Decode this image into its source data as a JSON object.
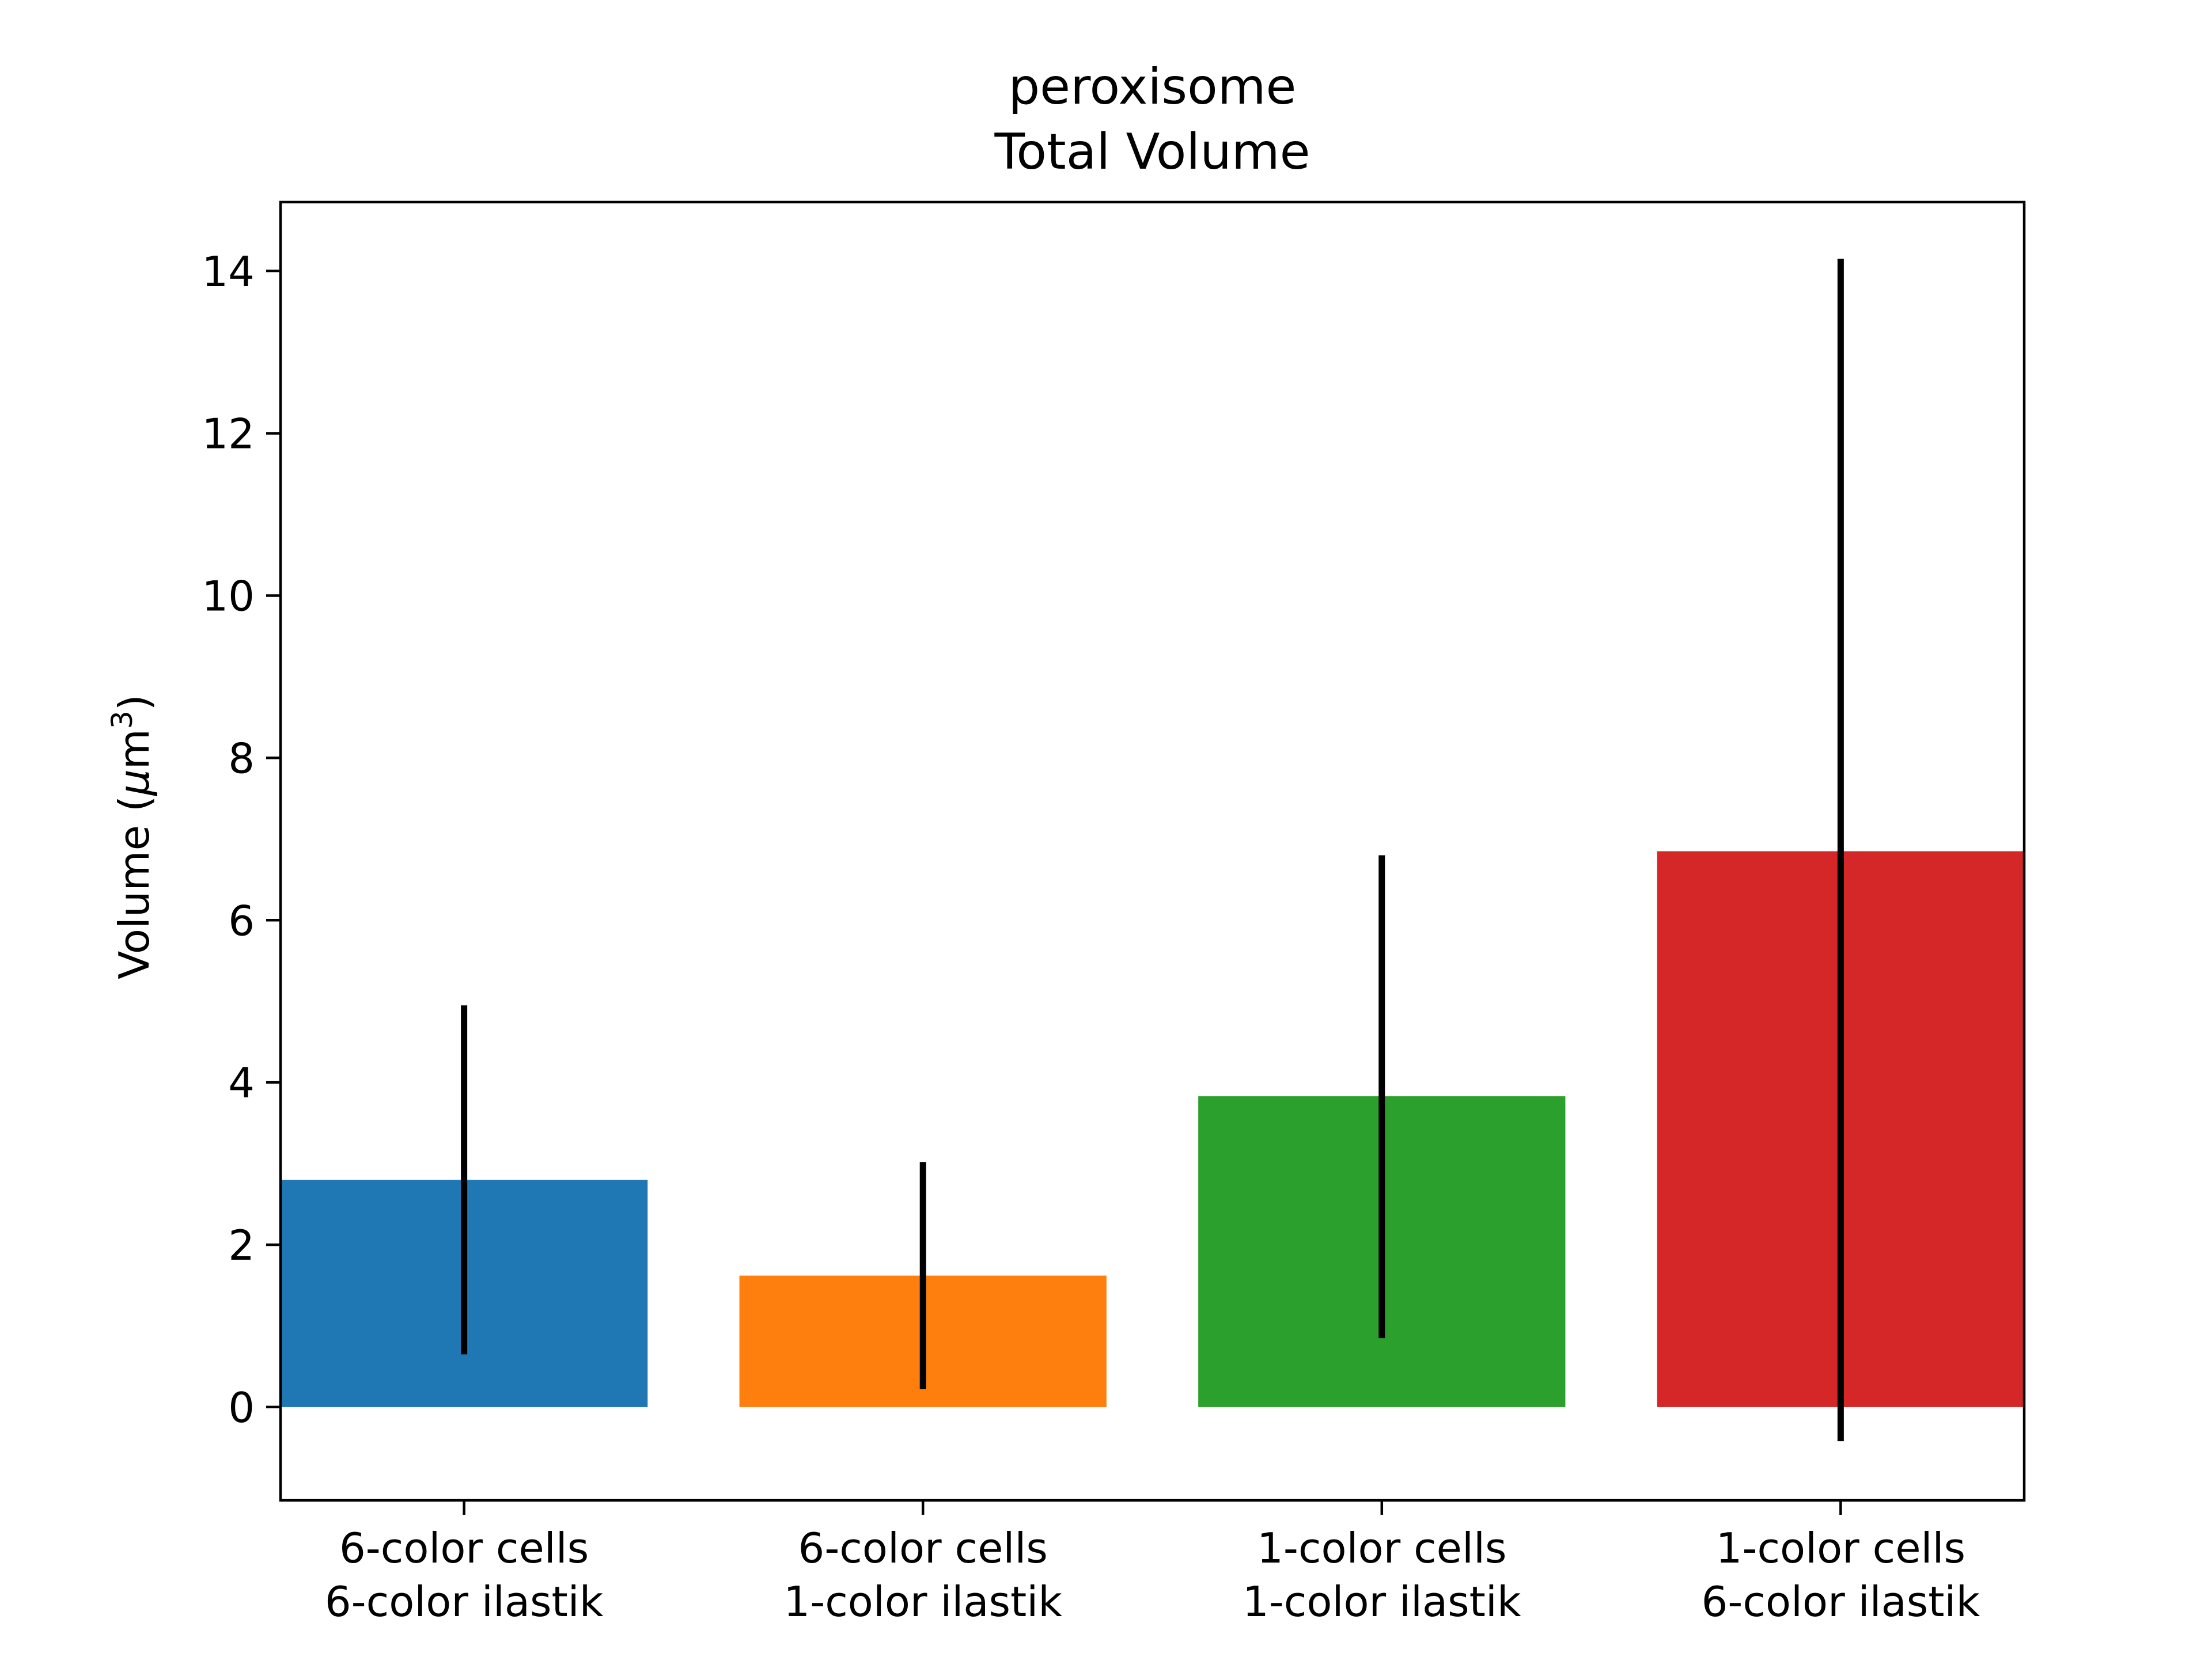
{
  "chart_data": {
    "type": "bar",
    "title": [
      "peroxisome",
      "Total Volume"
    ],
    "xlabel": "",
    "ylabel": "Volume (μm³)",
    "ylabel_parts": {
      "text": "Volume (",
      "mu": "μ",
      "unit": "m",
      "sup": "3",
      "close": ")"
    },
    "ylim": [
      -1.15,
      14.85
    ],
    "yticks": [
      0,
      2,
      4,
      6,
      8,
      10,
      12,
      14
    ],
    "ytick_labels": [
      "0",
      "2",
      "4",
      "6",
      "8",
      "10",
      "12",
      "14"
    ],
    "categories": [
      [
        "6-color cells",
        "6-color ilastik"
      ],
      [
        "6-color cells",
        "1-color ilastik"
      ],
      [
        "1-color cells",
        "1-color ilastik"
      ],
      [
        "1-color cells",
        "6-color ilastik"
      ]
    ],
    "values": [
      2.8,
      1.62,
      3.83,
      6.85
    ],
    "error_low": [
      0.65,
      0.22,
      0.85,
      -0.42
    ],
    "error_high": [
      4.95,
      3.02,
      6.8,
      14.15
    ],
    "colors": [
      "#1f77b4",
      "#ff7f0e",
      "#2ca02c",
      "#d62728"
    ],
    "grid": false,
    "legend": "none"
  }
}
